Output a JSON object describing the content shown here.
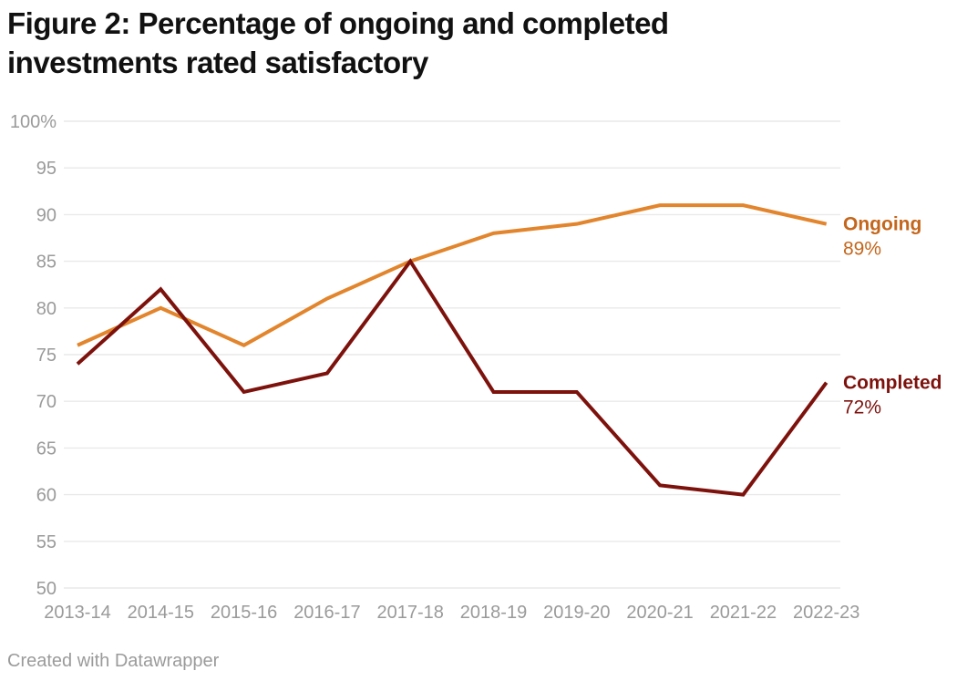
{
  "title_lines": [
    "Figure 2: Percentage of ongoing and completed",
    "investments rated satisfactory"
  ],
  "footer": "Created with Datawrapper",
  "colors": {
    "ongoing_line": "#E2852C",
    "ongoing_label": "#C4661B",
    "completed_line": "#7D120D",
    "completed_label": "#7D120D",
    "grid": "#E9E9E9",
    "axis_text": "#9A9A9A",
    "title_text": "#111111",
    "footer_text": "#9B9B9B",
    "background": "#FFFFFF"
  },
  "chart_data": {
    "type": "line",
    "title": "Figure 2: Percentage of ongoing and completed investments rated satisfactory",
    "categories": [
      "2013-14",
      "2014-15",
      "2015-16",
      "2016-17",
      "2017-18",
      "2018-19",
      "2019-20",
      "2020-21",
      "2021-22",
      "2022-23"
    ],
    "series": [
      {
        "name": "Ongoing",
        "values": [
          76,
          80,
          76,
          81,
          85,
          88,
          89,
          91,
          91,
          89
        ],
        "color": "#E2852C",
        "label_color": "#C4661B",
        "end_label": "Ongoing",
        "end_value_label": "89%"
      },
      {
        "name": "Completed",
        "values": [
          74,
          82,
          71,
          73,
          85,
          71,
          71,
          61,
          60,
          72
        ],
        "color": "#7D120D",
        "label_color": "#7D120D",
        "end_label": "Completed",
        "end_value_label": "72%"
      }
    ],
    "ylim": [
      50,
      100
    ],
    "yticks": [
      100,
      95,
      90,
      85,
      80,
      75,
      70,
      65,
      60,
      55,
      50
    ],
    "ytick_labels": [
      "100%",
      "95",
      "90",
      "85",
      "80",
      "75",
      "70",
      "65",
      "60",
      "55",
      "50"
    ],
    "xlabel": "",
    "ylabel": "",
    "grid": true,
    "legend_position": "end-of-line-labels",
    "attribution": "Created with Datawrapper"
  }
}
